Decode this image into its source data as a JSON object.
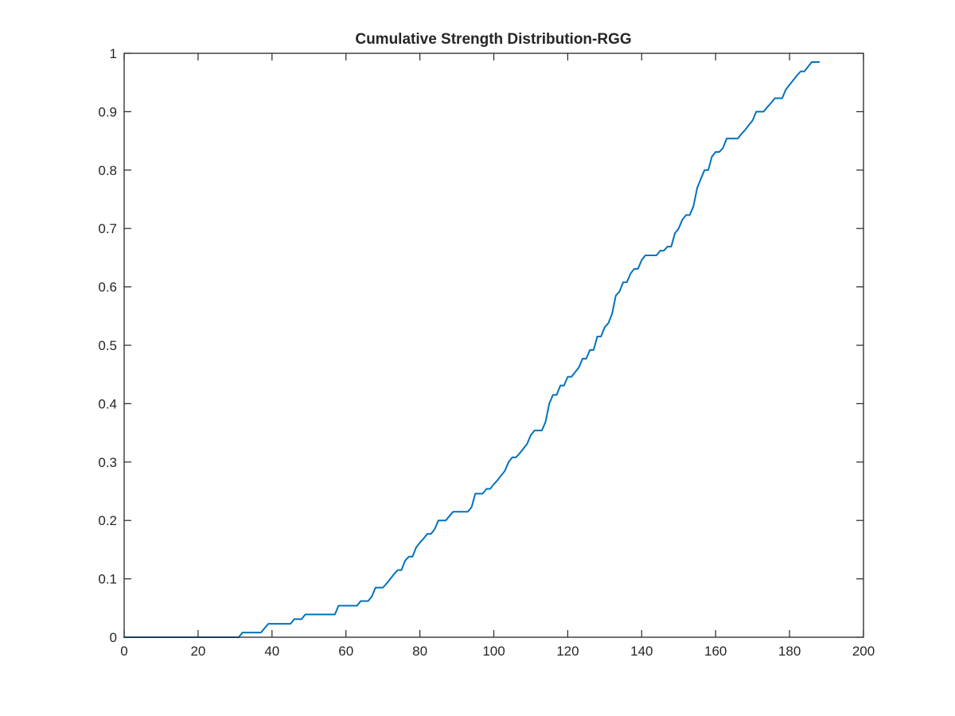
{
  "chart_data": {
    "type": "line",
    "title": "Cumulative Strength Distribution-RGG",
    "xlabel": "",
    "ylabel": "",
    "xlim": [
      0,
      200
    ],
    "ylim": [
      0,
      1
    ],
    "xticks": [
      0,
      20,
      40,
      60,
      80,
      100,
      120,
      140,
      160,
      180,
      200
    ],
    "yticks": [
      0,
      0.1,
      0.2,
      0.3,
      0.4,
      0.5,
      0.6,
      0.7,
      0.8,
      0.9,
      1
    ],
    "xtick_labels": [
      "0",
      "20",
      "40",
      "60",
      "80",
      "100",
      "120",
      "140",
      "160",
      "180",
      "200"
    ],
    "ytick_labels": [
      "0",
      "0.1",
      "0.2",
      "0.3",
      "0.4",
      "0.5",
      "0.6",
      "0.7",
      "0.8",
      "0.9",
      "1"
    ],
    "grid": false,
    "legend": "none",
    "series": [
      {
        "color": "#0072bd",
        "x": [
          0,
          31,
          32,
          37,
          39,
          45,
          46,
          48,
          49,
          57,
          58,
          63,
          64,
          66,
          67,
          68,
          70,
          71,
          73,
          74,
          75,
          76,
          77,
          78,
          79,
          80,
          81,
          82,
          83,
          84,
          85,
          86,
          87,
          89,
          90,
          93,
          94,
          95,
          97,
          98,
          99,
          100,
          101,
          102,
          103,
          104,
          105,
          106,
          107,
          108,
          109,
          110,
          111,
          113,
          114,
          115,
          116,
          117,
          118,
          119,
          120,
          121,
          122,
          123,
          124,
          125,
          126,
          127,
          128,
          129,
          130,
          131,
          132,
          133,
          134,
          135,
          136,
          137,
          138,
          139,
          140,
          141,
          142,
          143,
          144,
          145,
          146,
          147,
          148,
          149,
          150,
          151,
          152,
          153,
          154,
          155,
          156,
          157,
          158,
          159,
          160,
          161,
          162,
          163,
          164,
          165,
          166,
          167,
          168,
          169,
          170,
          171,
          172,
          173,
          174,
          175,
          176,
          177,
          178,
          179,
          180,
          181,
          182,
          183,
          184,
          185,
          186,
          187,
          188
        ],
        "y": [
          0,
          0,
          0.008,
          0.008,
          0.023,
          0.023,
          0.031,
          0.031,
          0.039,
          0.039,
          0.054,
          0.054,
          0.062,
          0.062,
          0.07,
          0.085,
          0.085,
          0.092,
          0.108,
          0.115,
          0.115,
          0.131,
          0.138,
          0.138,
          0.154,
          0.162,
          0.169,
          0.177,
          0.177,
          0.185,
          0.2,
          0.2,
          0.2,
          0.215,
          0.215,
          0.215,
          0.223,
          0.246,
          0.246,
          0.254,
          0.254,
          0.262,
          0.269,
          0.277,
          0.285,
          0.3,
          0.308,
          0.308,
          0.315,
          0.323,
          0.331,
          0.346,
          0.354,
          0.354,
          0.369,
          0.4,
          0.415,
          0.415,
          0.431,
          0.431,
          0.446,
          0.446,
          0.454,
          0.462,
          0.477,
          0.477,
          0.492,
          0.492,
          0.515,
          0.515,
          0.531,
          0.538,
          0.554,
          0.585,
          0.592,
          0.608,
          0.608,
          0.623,
          0.631,
          0.631,
          0.646,
          0.654,
          0.654,
          0.654,
          0.654,
          0.662,
          0.662,
          0.669,
          0.669,
          0.692,
          0.7,
          0.715,
          0.723,
          0.723,
          0.738,
          0.769,
          0.785,
          0.8,
          0.8,
          0.823,
          0.831,
          0.831,
          0.838,
          0.854,
          0.854,
          0.854,
          0.854,
          0.862,
          0.869,
          0.877,
          0.885,
          0.9,
          0.9,
          0.9,
          0.908,
          0.915,
          0.923,
          0.923,
          0.923,
          0.938,
          0.946,
          0.954,
          0.962,
          0.969,
          0.969,
          0.977,
          0.985,
          0.985,
          0.985
        ]
      }
    ]
  }
}
